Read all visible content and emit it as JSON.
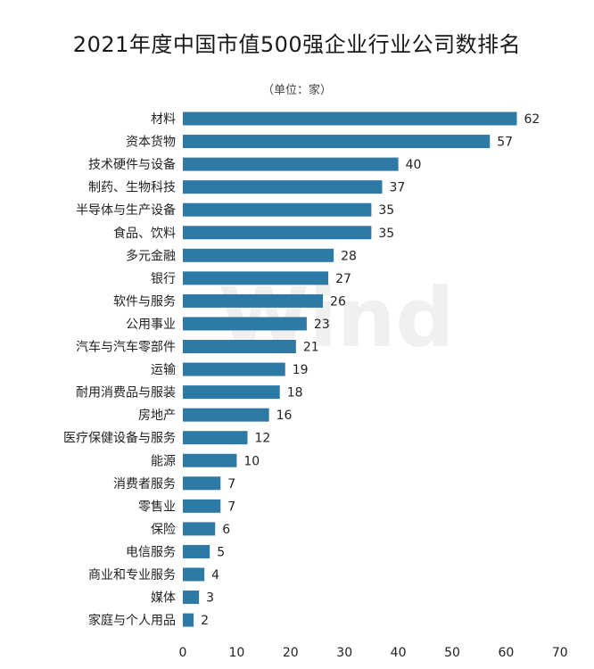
{
  "chart_data": {
    "type": "bar",
    "orientation": "horizontal",
    "title": "2021年度中国市值500强企业行业公司数排名",
    "subtitle": "（单位：家）",
    "categories": [
      "材料",
      "资本货物",
      "技术硬件与设备",
      "制药、生物科技",
      "半导体与生产设备",
      "食品、饮料",
      "多元金融",
      "银行",
      "软件与服务",
      "公用事业",
      "汽车与汽车零部件",
      "运输",
      "耐用消费品与服装",
      "房地产",
      "医疗保健设备与服务",
      "能源",
      "消费者服务",
      "零售业",
      "保险",
      "电信服务",
      "商业和专业服务",
      "媒体",
      "家庭与个人用品"
    ],
    "values": [
      62,
      57,
      40,
      37,
      35,
      35,
      28,
      27,
      26,
      23,
      21,
      19,
      18,
      16,
      12,
      10,
      7,
      7,
      6,
      5,
      4,
      3,
      2
    ],
    "xlim": [
      0,
      70
    ],
    "xticks": [
      0,
      10,
      20,
      30,
      40,
      50,
      60,
      70
    ],
    "bar_color": "#2e7aa6",
    "grid": false,
    "watermark": "Wind"
  }
}
